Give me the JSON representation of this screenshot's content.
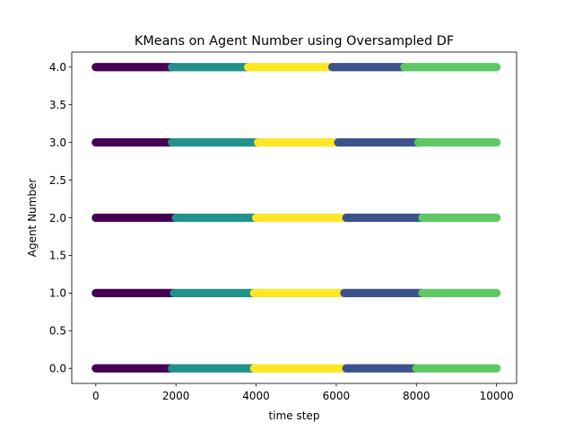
{
  "chart_data": {
    "type": "scatter",
    "title": "KMeans on Agent Number using Oversampled DF",
    "xlabel": "time step",
    "ylabel": "Agent Number",
    "xlim": [
      -600,
      10500
    ],
    "ylim": [
      -0.2,
      4.2
    ],
    "xticks": [
      0,
      2000,
      4000,
      6000,
      8000,
      10000
    ],
    "yticks": [
      0.0,
      0.5,
      1.0,
      1.5,
      2.0,
      2.5,
      3.0,
      3.5,
      4.0
    ],
    "xtick_labels": [
      "0",
      "2000",
      "4000",
      "6000",
      "8000",
      "10000"
    ],
    "ytick_labels": [
      "0.0",
      "0.5",
      "1.0",
      "1.5",
      "2.0",
      "2.5",
      "3.0",
      "3.5",
      "4.0"
    ],
    "grid": false,
    "legend": "none",
    "x_range": [
      0,
      10000
    ],
    "cluster_colors": {
      "purple": "#440154",
      "blue": "#3b528b",
      "teal": "#21918c",
      "green": "#5ec962",
      "yellow": "#fde725"
    },
    "rows": [
      {
        "agent": 4,
        "segments": [
          {
            "cluster": "purple",
            "x_start": 0,
            "x_end": 1900
          },
          {
            "cluster": "teal",
            "x_start": 1900,
            "x_end": 3800
          },
          {
            "cluster": "yellow",
            "x_start": 3800,
            "x_end": 5900
          },
          {
            "cluster": "blue",
            "x_start": 5900,
            "x_end": 7700
          },
          {
            "cluster": "green",
            "x_start": 7700,
            "x_end": 10000
          }
        ]
      },
      {
        "agent": 3,
        "segments": [
          {
            "cluster": "purple",
            "x_start": 0,
            "x_end": 1900
          },
          {
            "cluster": "teal",
            "x_start": 1900,
            "x_end": 4050
          },
          {
            "cluster": "yellow",
            "x_start": 4050,
            "x_end": 6050
          },
          {
            "cluster": "blue",
            "x_start": 6050,
            "x_end": 8050
          },
          {
            "cluster": "green",
            "x_start": 8050,
            "x_end": 10000
          }
        ]
      },
      {
        "agent": 2,
        "segments": [
          {
            "cluster": "purple",
            "x_start": 0,
            "x_end": 2000
          },
          {
            "cluster": "teal",
            "x_start": 2000,
            "x_end": 4000
          },
          {
            "cluster": "yellow",
            "x_start": 4000,
            "x_end": 6250
          },
          {
            "cluster": "blue",
            "x_start": 6250,
            "x_end": 8150
          },
          {
            "cluster": "green",
            "x_start": 8150,
            "x_end": 10000
          }
        ]
      },
      {
        "agent": 1,
        "segments": [
          {
            "cluster": "purple",
            "x_start": 0,
            "x_end": 1950
          },
          {
            "cluster": "teal",
            "x_start": 1950,
            "x_end": 3950
          },
          {
            "cluster": "yellow",
            "x_start": 3950,
            "x_end": 6200
          },
          {
            "cluster": "blue",
            "x_start": 6200,
            "x_end": 8150
          },
          {
            "cluster": "green",
            "x_start": 8150,
            "x_end": 10000
          }
        ]
      },
      {
        "agent": 0,
        "segments": [
          {
            "cluster": "purple",
            "x_start": 0,
            "x_end": 1900
          },
          {
            "cluster": "teal",
            "x_start": 1900,
            "x_end": 3950
          },
          {
            "cluster": "yellow",
            "x_start": 3950,
            "x_end": 6250
          },
          {
            "cluster": "blue",
            "x_start": 6250,
            "x_end": 8000
          },
          {
            "cluster": "green",
            "x_start": 8000,
            "x_end": 10000
          }
        ]
      }
    ]
  }
}
